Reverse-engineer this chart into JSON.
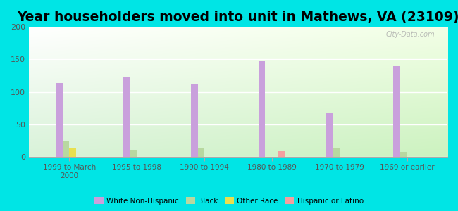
{
  "title": "Year householders moved into unit in Mathews, VA (23109)",
  "categories": [
    "1999 to March\n2000",
    "1995 to 1998",
    "1990 to 1994",
    "1980 to 1989",
    "1970 to 1979",
    "1969 or earlier"
  ],
  "series": {
    "White Non-Hispanic": [
      114,
      123,
      112,
      147,
      67,
      140
    ],
    "Black": [
      25,
      11,
      13,
      0,
      13,
      8
    ],
    "Other Race": [
      14,
      0,
      0,
      0,
      0,
      0
    ],
    "Hispanic or Latino": [
      0,
      0,
      0,
      10,
      0,
      0
    ]
  },
  "colors": {
    "White Non-Hispanic": "#c9a0dc",
    "Black": "#b8d8a0",
    "Other Race": "#e8e050",
    "Hispanic or Latino": "#f4a0a0"
  },
  "bar_width": 0.1,
  "ylim": [
    0,
    200
  ],
  "yticks": [
    0,
    50,
    100,
    150,
    200
  ],
  "outer_background": "#00e5e5",
  "title_fontsize": 13.5,
  "watermark": "City-Data.com",
  "legend_labels": [
    "White Non-Hispanic",
    "Black",
    "Other Race",
    "Hispanic or Latino"
  ],
  "legend_colors": [
    "#c9a0dc",
    "#b8d8a0",
    "#e8e050",
    "#f4a0a0"
  ]
}
